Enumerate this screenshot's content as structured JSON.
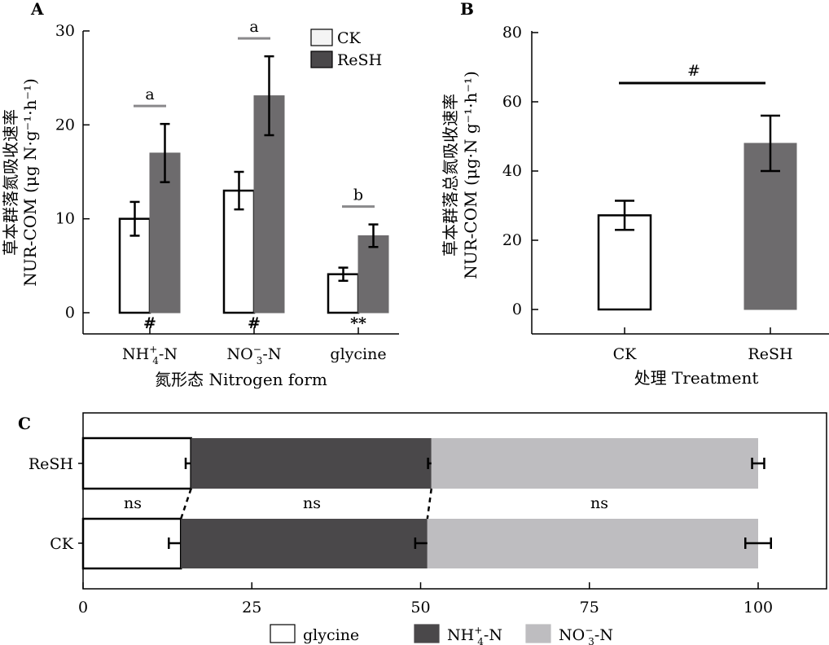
{
  "chart_data": [
    {
      "panel": "A",
      "type": "bar",
      "xlabel": "氮形态 Nitrogen form",
      "ylabel_line1": "草本群落氮吸收速率",
      "ylabel_line2": "NUR-COM (μg N·g⁻¹·h⁻¹)",
      "ylim": [
        0,
        30
      ],
      "yticks": [
        0,
        10,
        20,
        30
      ],
      "categories": [
        "NH4+-N",
        "NO3−-N",
        "glycine"
      ],
      "category_display": [
        {
          "base": "NH",
          "sub": "4",
          "sup": "+",
          "tail": "-N"
        },
        {
          "base": "NO",
          "sub": "3",
          "sup": "−",
          "tail": "-N"
        },
        {
          "base": "glycine",
          "sub": "",
          "sup": "",
          "tail": ""
        }
      ],
      "series": [
        {
          "name": "CK",
          "values": [
            10.0,
            13.0,
            4.1
          ],
          "errors": [
            1.8,
            2.0,
            0.7
          ],
          "color": "#ffffff"
        },
        {
          "name": "ReSH",
          "values": [
            17.0,
            23.1,
            8.2
          ],
          "errors": [
            3.1,
            4.2,
            1.2
          ],
          "color": "#6d6b6d"
        }
      ],
      "group_letters": [
        "a",
        "a",
        "b"
      ],
      "bottom_marks": [
        "#",
        "#",
        "**"
      ],
      "legend": {
        "position": "top-right",
        "entries": [
          "CK",
          "ReSH"
        ]
      }
    },
    {
      "panel": "B",
      "type": "bar",
      "xlabel": "处理 Treatment",
      "ylabel_line1": "草本群落总氮吸收速率",
      "ylabel_line2": "NUR-COM (μg·N g⁻¹·h⁻¹)",
      "ylim": [
        0,
        80
      ],
      "yticks": [
        0,
        20,
        40,
        60,
        80
      ],
      "categories": [
        "CK",
        "ReSH"
      ],
      "values": [
        27.2,
        48.0
      ],
      "errors": [
        4.2,
        8.0
      ],
      "colors": [
        "#ffffff",
        "#6d6b6d"
      ],
      "significance": "#"
    },
    {
      "panel": "C",
      "type": "bar",
      "orientation": "horizontal-stacked",
      "xlim": [
        0,
        100
      ],
      "xticks": [
        0,
        25,
        50,
        75,
        100
      ],
      "categories": [
        "ReSH",
        "CK"
      ],
      "series": [
        {
          "name": "glycine",
          "values": [
            16.0,
            14.5
          ],
          "errors": [
            0.8,
            1.8
          ],
          "color": "#ffffff"
        },
        {
          "name": "NH4+-N",
          "values": [
            35.6,
            36.5
          ],
          "errors": [
            0.5,
            1.8
          ],
          "color": "#4a484a"
        },
        {
          "name": "NO3−-N",
          "values": [
            48.4,
            49.0
          ],
          "errors": [
            0.9,
            1.9
          ],
          "color": "#bebdc0"
        }
      ],
      "legend_display": [
        {
          "base": "glycine",
          "sub": "",
          "sup": "",
          "tail": ""
        },
        {
          "base": "NH",
          "sub": "4",
          "sup": "+",
          "tail": "-N"
        },
        {
          "base": "NO",
          "sub": "3",
          "sup": "−",
          "tail": "-N"
        }
      ],
      "between_labels": [
        "ns",
        "ns",
        "ns"
      ],
      "legend": {
        "position": "bottom"
      }
    }
  ]
}
